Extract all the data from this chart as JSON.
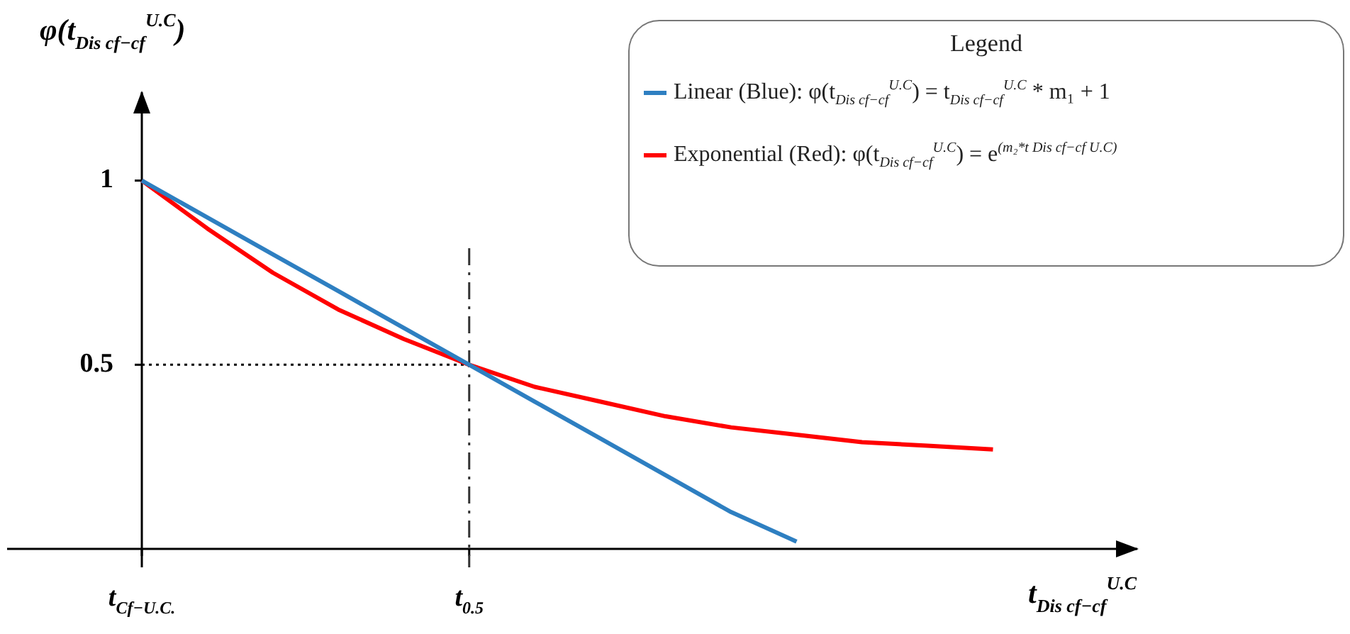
{
  "chart_data": {
    "type": "line",
    "xlabel": "t$_{Dis cf−cf}$$^{U.C}$",
    "ylabel": "φ(t$_{Dis cf−cf}$$^{U.C}$)",
    "legend_title": "Legend",
    "legend": "top right",
    "categories": [
      "t$_{Cf−U.C.}$",
      null,
      null,
      null,
      null,
      "t$_{0.5}$",
      null,
      null,
      null,
      null,
      null,
      null,
      null,
      null
    ],
    "ylim": [
      -0.05,
      1.24
    ],
    "yticks": [
      {
        "value": 0.5,
        "label": "0.5"
      },
      1
    ],
    "series": [
      {
        "name": "Linear (Blue): φ(t$_{Dis cf−cf}$$^{U.C}$) = t$_{Dis cf−cf}$$^{U.C}$ * m₁ + 1",
        "color": "#2e7fc1",
        "values": [
          1,
          0.9,
          0.8,
          0.7,
          0.6,
          0.5,
          0.4,
          0.3,
          0.2,
          0.1,
          0.02,
          null,
          null,
          null
        ]
      },
      {
        "name": "Exponential (Red): φ(t$_{Dis cf−cf}$$^{U.C}$) = e$^{(m₂*t Dis cf−cf U.C)}$",
        "color": "#ff0000",
        "values": [
          1,
          0.87,
          0.75,
          0.65,
          0.57,
          0.5,
          0.44,
          0.4,
          0.36,
          0.33,
          0.31,
          0.29,
          0.28,
          0.27
        ]
      }
    ],
    "ref_lines": [
      {
        "axis": "x",
        "value": "t$_{0.5}$",
        "line_style": "dashed",
        "color": "#333333"
      },
      {
        "axis": "y",
        "value": 0.5,
        "line_style": "dotted",
        "color": "#000000"
      }
    ]
  }
}
